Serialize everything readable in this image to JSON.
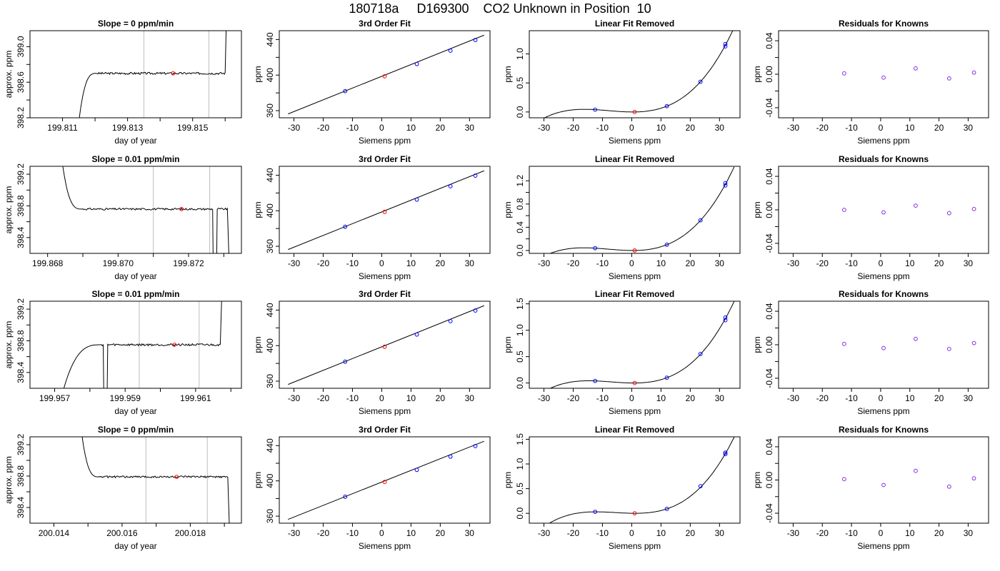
{
  "header": {
    "title": "180718a     D169300    CO2 Unknown in Position  10"
  },
  "colors": {
    "trace": "#000000",
    "known_point": "#0000ff",
    "unknown_point": "#ff0000",
    "residual_point": "#8a2be2",
    "window_line": "#bebebe",
    "frame": "#000000"
  },
  "chart_data": [
    {
      "type": "line",
      "row": 1,
      "col": 1,
      "title": "Slope =  0  ppm/min",
      "xlabel": "day of year",
      "ylabel": "approx. ppm",
      "xlim": [
        199.81,
        199.8165
      ],
      "ylim": [
        398.2,
        399.18
      ],
      "xticks": [
        199.811,
        199.812,
        199.813,
        199.814,
        199.815,
        199.816
      ],
      "xtick_labels": [
        "199.811",
        "",
        "199.813",
        "",
        "199.815",
        ""
      ],
      "yticks": [
        398.2,
        398.6,
        399.0
      ],
      "yticks_minor": [
        398.4,
        398.8
      ],
      "window": [
        199.8135,
        199.8155
      ],
      "unknown_point": [
        199.8144,
        398.7
      ],
      "trace": {
        "x0": 199.8114,
        "t0": 199.8115,
        "y_start": 398.15,
        "y_level": 398.7,
        "rise": "fast",
        "end_rise_x": 199.816,
        "end_rise_y": 399.5,
        "dropout": null,
        "jitter": 0.012
      }
    },
    {
      "type": "line",
      "row": 1,
      "col": 2,
      "title": "3rd Order Fit",
      "xlabel": "Siemens ppm",
      "ylabel": "ppm",
      "xlim": [
        -35,
        37
      ],
      "ylim": [
        352,
        450
      ],
      "xticks": [
        -30,
        -20,
        -10,
        0,
        10,
        20,
        30
      ],
      "xtick_labels": [
        "-30",
        "-20",
        "-10",
        "0",
        "10",
        "20",
        "30"
      ],
      "yticks": [
        360,
        400,
        440
      ],
      "yticks_minor": [
        380,
        420
      ],
      "fit_line": [
        [
          -32,
          356.3
        ],
        [
          35,
          445.0
        ]
      ],
      "known_points": [
        [
          -12.5,
          382.0
        ],
        [
          12,
          412.5
        ],
        [
          23.5,
          427.5
        ],
        [
          32,
          439.5
        ]
      ],
      "unknown_point": [
        1,
        398.7
      ]
    },
    {
      "type": "line",
      "row": 1,
      "col": 3,
      "title": "Linear Fit Removed",
      "xlabel": "Siemens ppm",
      "ylabel": "ppm",
      "xlim": [
        -35,
        37
      ],
      "ylim": [
        -0.1,
        1.4
      ],
      "xticks": [
        -30,
        -20,
        -10,
        0,
        10,
        20,
        30
      ],
      "xtick_labels": [
        "-30",
        "-20",
        "-10",
        "0",
        "10",
        "20",
        "30"
      ],
      "yticks": [
        0.0,
        0.5,
        1.0
      ],
      "yticks_minor": [],
      "known_points": [
        [
          -12.5,
          0.04
        ],
        [
          12,
          0.1
        ],
        [
          23.5,
          0.52
        ],
        [
          32,
          1.13
        ],
        [
          32,
          1.17
        ]
      ],
      "unknown_point": [
        1,
        0.0
      ],
      "curve": {
        "x_from": -32,
        "x_to": 35,
        "points": [
          [
            -12.5,
            0.04
          ],
          [
            1,
            0.0
          ],
          [
            12,
            0.1
          ],
          [
            32,
            1.15
          ]
        ]
      }
    },
    {
      "type": "scatter",
      "row": 1,
      "col": 4,
      "title": "Residuals for Knowns",
      "xlabel": "Siemens ppm",
      "ylabel": "ppm",
      "xlim": [
        -35,
        37
      ],
      "ylim": [
        -0.052,
        0.052
      ],
      "xticks": [
        -30,
        -20,
        -10,
        0,
        10,
        20,
        30
      ],
      "xtick_labels": [
        "-30",
        "-20",
        "-10",
        "0",
        "10",
        "20",
        "30"
      ],
      "yticks": [
        -0.04,
        0.0,
        0.04
      ],
      "yticks_minor": [
        -0.02,
        0.02
      ],
      "points": [
        [
          -12.5,
          0.001
        ],
        [
          1,
          -0.004
        ],
        [
          12,
          0.007
        ],
        [
          23.5,
          -0.005
        ],
        [
          32,
          0.002
        ]
      ]
    },
    {
      "type": "line",
      "row": 2,
      "col": 1,
      "title": "Slope =  0.01  ppm/min",
      "xlabel": "day of year",
      "ylabel": "approx. ppm",
      "xlim": [
        199.8675,
        199.8735
      ],
      "ylim": [
        398.2,
        399.3
      ],
      "xticks": [
        199.868,
        199.869,
        199.87,
        199.871,
        199.872,
        199.873
      ],
      "xtick_labels": [
        "199.868",
        "",
        "199.870",
        "",
        "199.872",
        ""
      ],
      "yticks": [
        398.4,
        398.8,
        399.2
      ],
      "yticks_minor": [
        398.6,
        399.0
      ],
      "window": [
        199.871,
        199.8726
      ],
      "unknown_point": [
        199.8718,
        398.76
      ],
      "trace": {
        "x0": 199.8684,
        "t0": 199.8684,
        "y_start": 399.4,
        "y_level": 398.76,
        "rise": "fall",
        "end_drop_x": 199.8731,
        "end_drop_y": 398.1,
        "dropout": [
          199.8727,
          199.8728
        ],
        "jitter": 0.012
      }
    },
    {
      "type": "line",
      "row": 2,
      "col": 2,
      "title": "3rd Order Fit",
      "xlabel": "Siemens ppm",
      "ylabel": "ppm",
      "xlim": [
        -35,
        37
      ],
      "ylim": [
        352,
        450
      ],
      "xticks": [
        -30,
        -20,
        -10,
        0,
        10,
        20,
        30
      ],
      "xtick_labels": [
        "-30",
        "-20",
        "-10",
        "0",
        "10",
        "20",
        "30"
      ],
      "yticks": [
        360,
        400,
        440
      ],
      "yticks_minor": [
        380,
        420
      ],
      "fit_line": [
        [
          -32,
          356.3
        ],
        [
          35,
          445.0
        ]
      ],
      "known_points": [
        [
          -12.5,
          382.0
        ],
        [
          12,
          412.5
        ],
        [
          23.5,
          427.5
        ],
        [
          32,
          439.5
        ]
      ],
      "unknown_point": [
        1,
        398.76
      ]
    },
    {
      "type": "line",
      "row": 2,
      "col": 3,
      "title": "Linear Fit Removed",
      "xlabel": "Siemens ppm",
      "ylabel": "ppm",
      "xlim": [
        -35,
        37
      ],
      "ylim": [
        -0.05,
        1.45
      ],
      "xticks": [
        -30,
        -20,
        -10,
        0,
        10,
        20,
        30
      ],
      "xtick_labels": [
        "-30",
        "-20",
        "-10",
        "0",
        "10",
        "20",
        "30"
      ],
      "yticks": [
        0.0,
        0.4,
        0.8,
        1.2
      ],
      "yticks_minor": [
        0.2,
        0.6,
        1.0
      ],
      "known_points": [
        [
          -12.5,
          0.04
        ],
        [
          12,
          0.1
        ],
        [
          23.5,
          0.52
        ],
        [
          32,
          1.12
        ],
        [
          32,
          1.16
        ]
      ],
      "unknown_point": [
        1,
        0.0
      ],
      "curve": {
        "x_from": -32,
        "x_to": 35,
        "points": [
          [
            -12.5,
            0.04
          ],
          [
            1,
            0.0
          ],
          [
            12,
            0.1
          ],
          [
            32,
            1.14
          ]
        ]
      }
    },
    {
      "type": "scatter",
      "row": 2,
      "col": 4,
      "title": "Residuals for Knowns",
      "xlabel": "Siemens ppm",
      "ylabel": "ppm",
      "xlim": [
        -35,
        37
      ],
      "ylim": [
        -0.052,
        0.052
      ],
      "xticks": [
        -30,
        -20,
        -10,
        0,
        10,
        20,
        30
      ],
      "xtick_labels": [
        "-30",
        "-20",
        "-10",
        "0",
        "10",
        "20",
        "30"
      ],
      "yticks": [
        -0.04,
        0.0,
        0.04
      ],
      "yticks_minor": [
        -0.02,
        0.02
      ],
      "points": [
        [
          -12.5,
          0.0
        ],
        [
          1,
          -0.003
        ],
        [
          12,
          0.005
        ],
        [
          23.5,
          -0.004
        ],
        [
          32,
          0.001
        ]
      ]
    },
    {
      "type": "line",
      "row": 3,
      "col": 1,
      "title": "Slope =  0.01  ppm/min",
      "xlabel": "day of year",
      "ylabel": "approx. ppm",
      "xlim": [
        199.9563,
        199.9623
      ],
      "ylim": [
        398.2,
        399.3
      ],
      "xticks": [
        199.957,
        199.958,
        199.959,
        199.96,
        199.961,
        199.962
      ],
      "xtick_labels": [
        "199.957",
        "",
        "199.959",
        "",
        "199.961",
        ""
      ],
      "yticks": [
        398.4,
        398.8,
        399.2
      ],
      "yticks_minor": [
        398.6,
        399.0
      ],
      "window": [
        199.9594,
        199.9611
      ],
      "unknown_point": [
        199.9604,
        398.75
      ],
      "trace": {
        "x0": 199.9571,
        "t0": 199.9572,
        "y_start": 398.1,
        "y_level": 398.75,
        "rise": "slow",
        "end_rise_x": 199.9617,
        "end_rise_y": 399.5,
        "dropout": [
          199.9584,
          199.9585
        ],
        "jitter": 0.014
      }
    },
    {
      "type": "line",
      "row": 3,
      "col": 2,
      "title": "3rd Order Fit",
      "xlabel": "Siemens ppm",
      "ylabel": "ppm",
      "xlim": [
        -35,
        37
      ],
      "ylim": [
        352,
        450
      ],
      "xticks": [
        -30,
        -20,
        -10,
        0,
        10,
        20,
        30
      ],
      "xtick_labels": [
        "-30",
        "-20",
        "-10",
        "0",
        "10",
        "20",
        "30"
      ],
      "yticks": [
        360,
        400,
        440
      ],
      "yticks_minor": [
        380,
        420
      ],
      "fit_line": [
        [
          -32,
          356.3
        ],
        [
          35,
          445.0
        ]
      ],
      "known_points": [
        [
          -12.5,
          382.0
        ],
        [
          12,
          412.5
        ],
        [
          23.5,
          427.5
        ],
        [
          32,
          439.5
        ]
      ],
      "unknown_point": [
        1,
        398.75
      ]
    },
    {
      "type": "line",
      "row": 3,
      "col": 3,
      "title": "Linear Fit Removed",
      "xlabel": "Siemens ppm",
      "ylabel": "ppm",
      "xlim": [
        -35,
        37
      ],
      "ylim": [
        -0.1,
        1.55
      ],
      "xticks": [
        -30,
        -20,
        -10,
        0,
        10,
        20,
        30
      ],
      "xtick_labels": [
        "-30",
        "-20",
        "-10",
        "0",
        "10",
        "20",
        "30"
      ],
      "yticks": [
        0.0,
        0.5,
        1.0,
        1.5
      ],
      "yticks_minor": [],
      "known_points": [
        [
          -12.5,
          0.04
        ],
        [
          12,
          0.1
        ],
        [
          23.5,
          0.55
        ],
        [
          32,
          1.19
        ],
        [
          32,
          1.24
        ]
      ],
      "unknown_point": [
        1,
        0.0
      ],
      "curve": {
        "x_from": -32,
        "x_to": 35,
        "points": [
          [
            -12.5,
            0.04
          ],
          [
            1,
            0.0
          ],
          [
            12,
            0.1
          ],
          [
            32,
            1.22
          ]
        ]
      }
    },
    {
      "type": "scatter",
      "row": 3,
      "col": 4,
      "title": "Residuals for Knowns",
      "xlabel": "Siemens ppm",
      "ylabel": "ppm",
      "xlim": [
        -35,
        37
      ],
      "ylim": [
        -0.052,
        0.052
      ],
      "xticks": [
        -30,
        -20,
        -10,
        0,
        10,
        20,
        30
      ],
      "xtick_labels": [
        "-30",
        "-20",
        "-10",
        "0",
        "10",
        "20",
        "30"
      ],
      "yticks": [
        -0.04,
        0.0,
        0.04
      ],
      "yticks_minor": [
        -0.02,
        0.02
      ],
      "points": [
        [
          -12.5,
          0.001
        ],
        [
          1,
          -0.004
        ],
        [
          12,
          0.007
        ],
        [
          23.5,
          -0.005
        ],
        [
          32,
          0.002
        ]
      ]
    },
    {
      "type": "line",
      "row": 4,
      "col": 1,
      "title": "Slope =  0  ppm/min",
      "xlabel": "day of year",
      "ylabel": "approx. ppm",
      "xlim": [
        200.0133,
        200.0195
      ],
      "ylim": [
        398.2,
        399.3
      ],
      "xticks": [
        200.014,
        200.015,
        200.016,
        200.017,
        200.018,
        200.019
      ],
      "xtick_labels": [
        "200.014",
        "",
        "200.016",
        "",
        "200.018",
        ""
      ],
      "yticks": [
        398.4,
        398.8,
        399.2
      ],
      "yticks_minor": [
        398.6,
        399.0
      ],
      "window": [
        200.0167,
        200.0185
      ],
      "unknown_point": [
        200.0176,
        398.79
      ],
      "trace": {
        "x0": 200.0148,
        "t0": 200.0148,
        "y_start": 399.4,
        "y_level": 398.79,
        "rise": "fall",
        "end_drop_x": 200.0191,
        "end_drop_y": 398.1,
        "dropout": null,
        "jitter": 0.012
      }
    },
    {
      "type": "line",
      "row": 4,
      "col": 2,
      "title": "3rd Order Fit",
      "xlabel": "Siemens ppm",
      "ylabel": "ppm",
      "xlim": [
        -35,
        37
      ],
      "ylim": [
        352,
        450
      ],
      "xticks": [
        -30,
        -20,
        -10,
        0,
        10,
        20,
        30
      ],
      "xtick_labels": [
        "-30",
        "-20",
        "-10",
        "0",
        "10",
        "20",
        "30"
      ],
      "yticks": [
        360,
        400,
        440
      ],
      "yticks_minor": [
        380,
        420
      ],
      "fit_line": [
        [
          -32,
          356.3
        ],
        [
          35,
          445.0
        ]
      ],
      "known_points": [
        [
          -12.5,
          382.0
        ],
        [
          12,
          412.5
        ],
        [
          23.5,
          427.5
        ],
        [
          32,
          439.5
        ]
      ],
      "unknown_point": [
        1,
        398.79
      ]
    },
    {
      "type": "line",
      "row": 4,
      "col": 3,
      "title": "Linear Fit Removed",
      "xlabel": "Siemens ppm",
      "ylabel": "ppm",
      "xlim": [
        -35,
        37
      ],
      "ylim": [
        -0.2,
        1.55
      ],
      "xticks": [
        -30,
        -20,
        -10,
        0,
        10,
        20,
        30
      ],
      "xtick_labels": [
        "-30",
        "-20",
        "-10",
        "0",
        "10",
        "20",
        "30"
      ],
      "yticks": [
        0.0,
        0.5,
        1.0,
        1.5
      ],
      "yticks_minor": [],
      "known_points": [
        [
          -12.5,
          0.03
        ],
        [
          12,
          0.09
        ],
        [
          23.5,
          0.55
        ],
        [
          32,
          1.2
        ],
        [
          32,
          1.23
        ]
      ],
      "unknown_point": [
        1,
        0.0
      ],
      "curve": {
        "x_from": -32,
        "x_to": 35,
        "points": [
          [
            -12.5,
            0.03
          ],
          [
            1,
            0.0
          ],
          [
            12,
            0.09
          ],
          [
            32,
            1.21
          ]
        ]
      }
    },
    {
      "type": "scatter",
      "row": 4,
      "col": 4,
      "title": "Residuals for Knowns",
      "xlabel": "Siemens ppm",
      "ylabel": "ppm",
      "xlim": [
        -35,
        37
      ],
      "ylim": [
        -0.052,
        0.052
      ],
      "xticks": [
        -30,
        -20,
        -10,
        0,
        10,
        20,
        30
      ],
      "xtick_labels": [
        "-30",
        "-20",
        "-10",
        "0",
        "10",
        "20",
        "30"
      ],
      "yticks": [
        -0.04,
        0.0,
        0.04
      ],
      "yticks_minor": [
        -0.02,
        0.02
      ],
      "points": [
        [
          -12.5,
          0.001
        ],
        [
          1,
          -0.006
        ],
        [
          12,
          0.011
        ],
        [
          23.5,
          -0.008
        ],
        [
          32,
          0.002
        ]
      ]
    }
  ]
}
